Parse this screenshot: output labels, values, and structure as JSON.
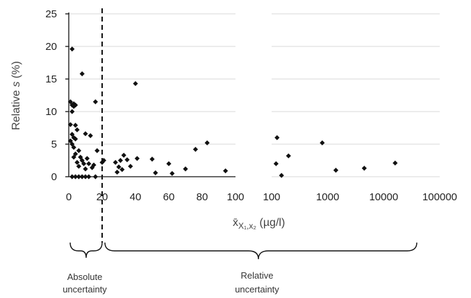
{
  "chart_data": [
    {
      "type": "scatter",
      "xscale": "linear",
      "xlim": [
        0,
        100
      ],
      "ylim": [
        0,
        25
      ],
      "xticks": [
        0,
        20,
        40,
        60,
        80,
        100
      ],
      "yticks": [
        0,
        5,
        10,
        15,
        20,
        25
      ],
      "grid": "horizontal",
      "ylabel_prefix": "Relative ",
      "ylabel_italic": "s",
      "ylabel_suffix": " (%)",
      "threshold_x": 20,
      "series": [
        {
          "marker": "diamond",
          "color": "#111111",
          "points": [
            [
              2,
              19.6
            ],
            [
              8,
              15.8
            ],
            [
              1,
              11.5
            ],
            [
              2,
              11
            ],
            [
              3,
              11.2
            ],
            [
              4,
              11
            ],
            [
              16,
              11.5
            ],
            [
              2,
              10
            ],
            [
              3,
              10.8
            ],
            [
              1,
              8
            ],
            [
              4,
              7.9
            ],
            [
              5,
              7.2
            ],
            [
              2,
              6.5
            ],
            [
              3,
              6
            ],
            [
              4,
              5.8
            ],
            [
              1,
              5.5
            ],
            [
              2,
              5
            ],
            [
              3,
              4.5
            ],
            [
              6,
              4
            ],
            [
              10,
              6.6
            ],
            [
              13,
              6.3
            ],
            [
              4,
              3.5
            ],
            [
              3,
              3
            ],
            [
              7,
              3
            ],
            [
              8,
              2.5
            ],
            [
              11,
              2.8
            ],
            [
              5,
              2.2
            ],
            [
              9,
              2
            ],
            [
              12,
              2
            ],
            [
              15,
              1.8
            ],
            [
              6,
              1.6
            ],
            [
              10,
              1.2
            ],
            [
              14,
              1.4
            ],
            [
              17,
              4
            ],
            [
              20,
              2.2
            ],
            [
              2,
              0
            ],
            [
              4,
              0
            ],
            [
              6,
              0
            ],
            [
              8,
              0
            ],
            [
              10,
              0
            ],
            [
              12,
              0
            ],
            [
              16,
              0
            ],
            [
              21,
              2.5
            ],
            [
              28,
              2.2
            ],
            [
              31,
              2.5
            ],
            [
              33,
              3.3
            ],
            [
              35,
              2.6
            ],
            [
              41,
              2.8
            ],
            [
              40,
              14.3
            ],
            [
              30,
              1.5
            ],
            [
              32,
              1.1
            ],
            [
              37,
              1.6
            ],
            [
              29,
              0.7
            ],
            [
              50,
              2.7
            ],
            [
              52,
              0.6
            ],
            [
              60,
              2
            ],
            [
              62,
              0.5
            ],
            [
              70,
              1.2
            ],
            [
              76,
              4.2
            ],
            [
              83,
              5.2
            ],
            [
              94,
              0.9
            ]
          ]
        }
      ]
    },
    {
      "type": "scatter",
      "xscale": "log",
      "xlim": [
        100,
        100000
      ],
      "ylim": [
        0,
        25
      ],
      "xticks": [
        100,
        1000,
        10000,
        100000
      ],
      "grid": "horizontal",
      "xlabel": "x̄X₁,x₂ (µg/l)",
      "series": [
        {
          "marker": "diamond",
          "color": "#111111",
          "points": [
            [
              125,
              6
            ],
            [
              120,
              2
            ],
            [
              150,
              0.2
            ],
            [
              200,
              3.2
            ],
            [
              800,
              5.2
            ],
            [
              1400,
              1
            ],
            [
              4500,
              1.3
            ],
            [
              16000,
              2.1
            ]
          ]
        }
      ]
    }
  ],
  "x_tick_labels": [
    "0",
    "20",
    "40",
    "60",
    "80",
    "100",
    "100",
    "1000",
    "10000",
    "100000"
  ],
  "y_tick_labels": [
    "0",
    "5",
    "10",
    "15",
    "20",
    "25"
  ],
  "xlabel_main": "x̄",
  "xlabel_sub": "X₁,x₂",
  "xlabel_unit": " (µg/l)",
  "annotations": {
    "absolute_line1": "Absolute",
    "absolute_line2": "uncertainty",
    "relative_line1": "Relative",
    "relative_line2": "uncertainty"
  }
}
